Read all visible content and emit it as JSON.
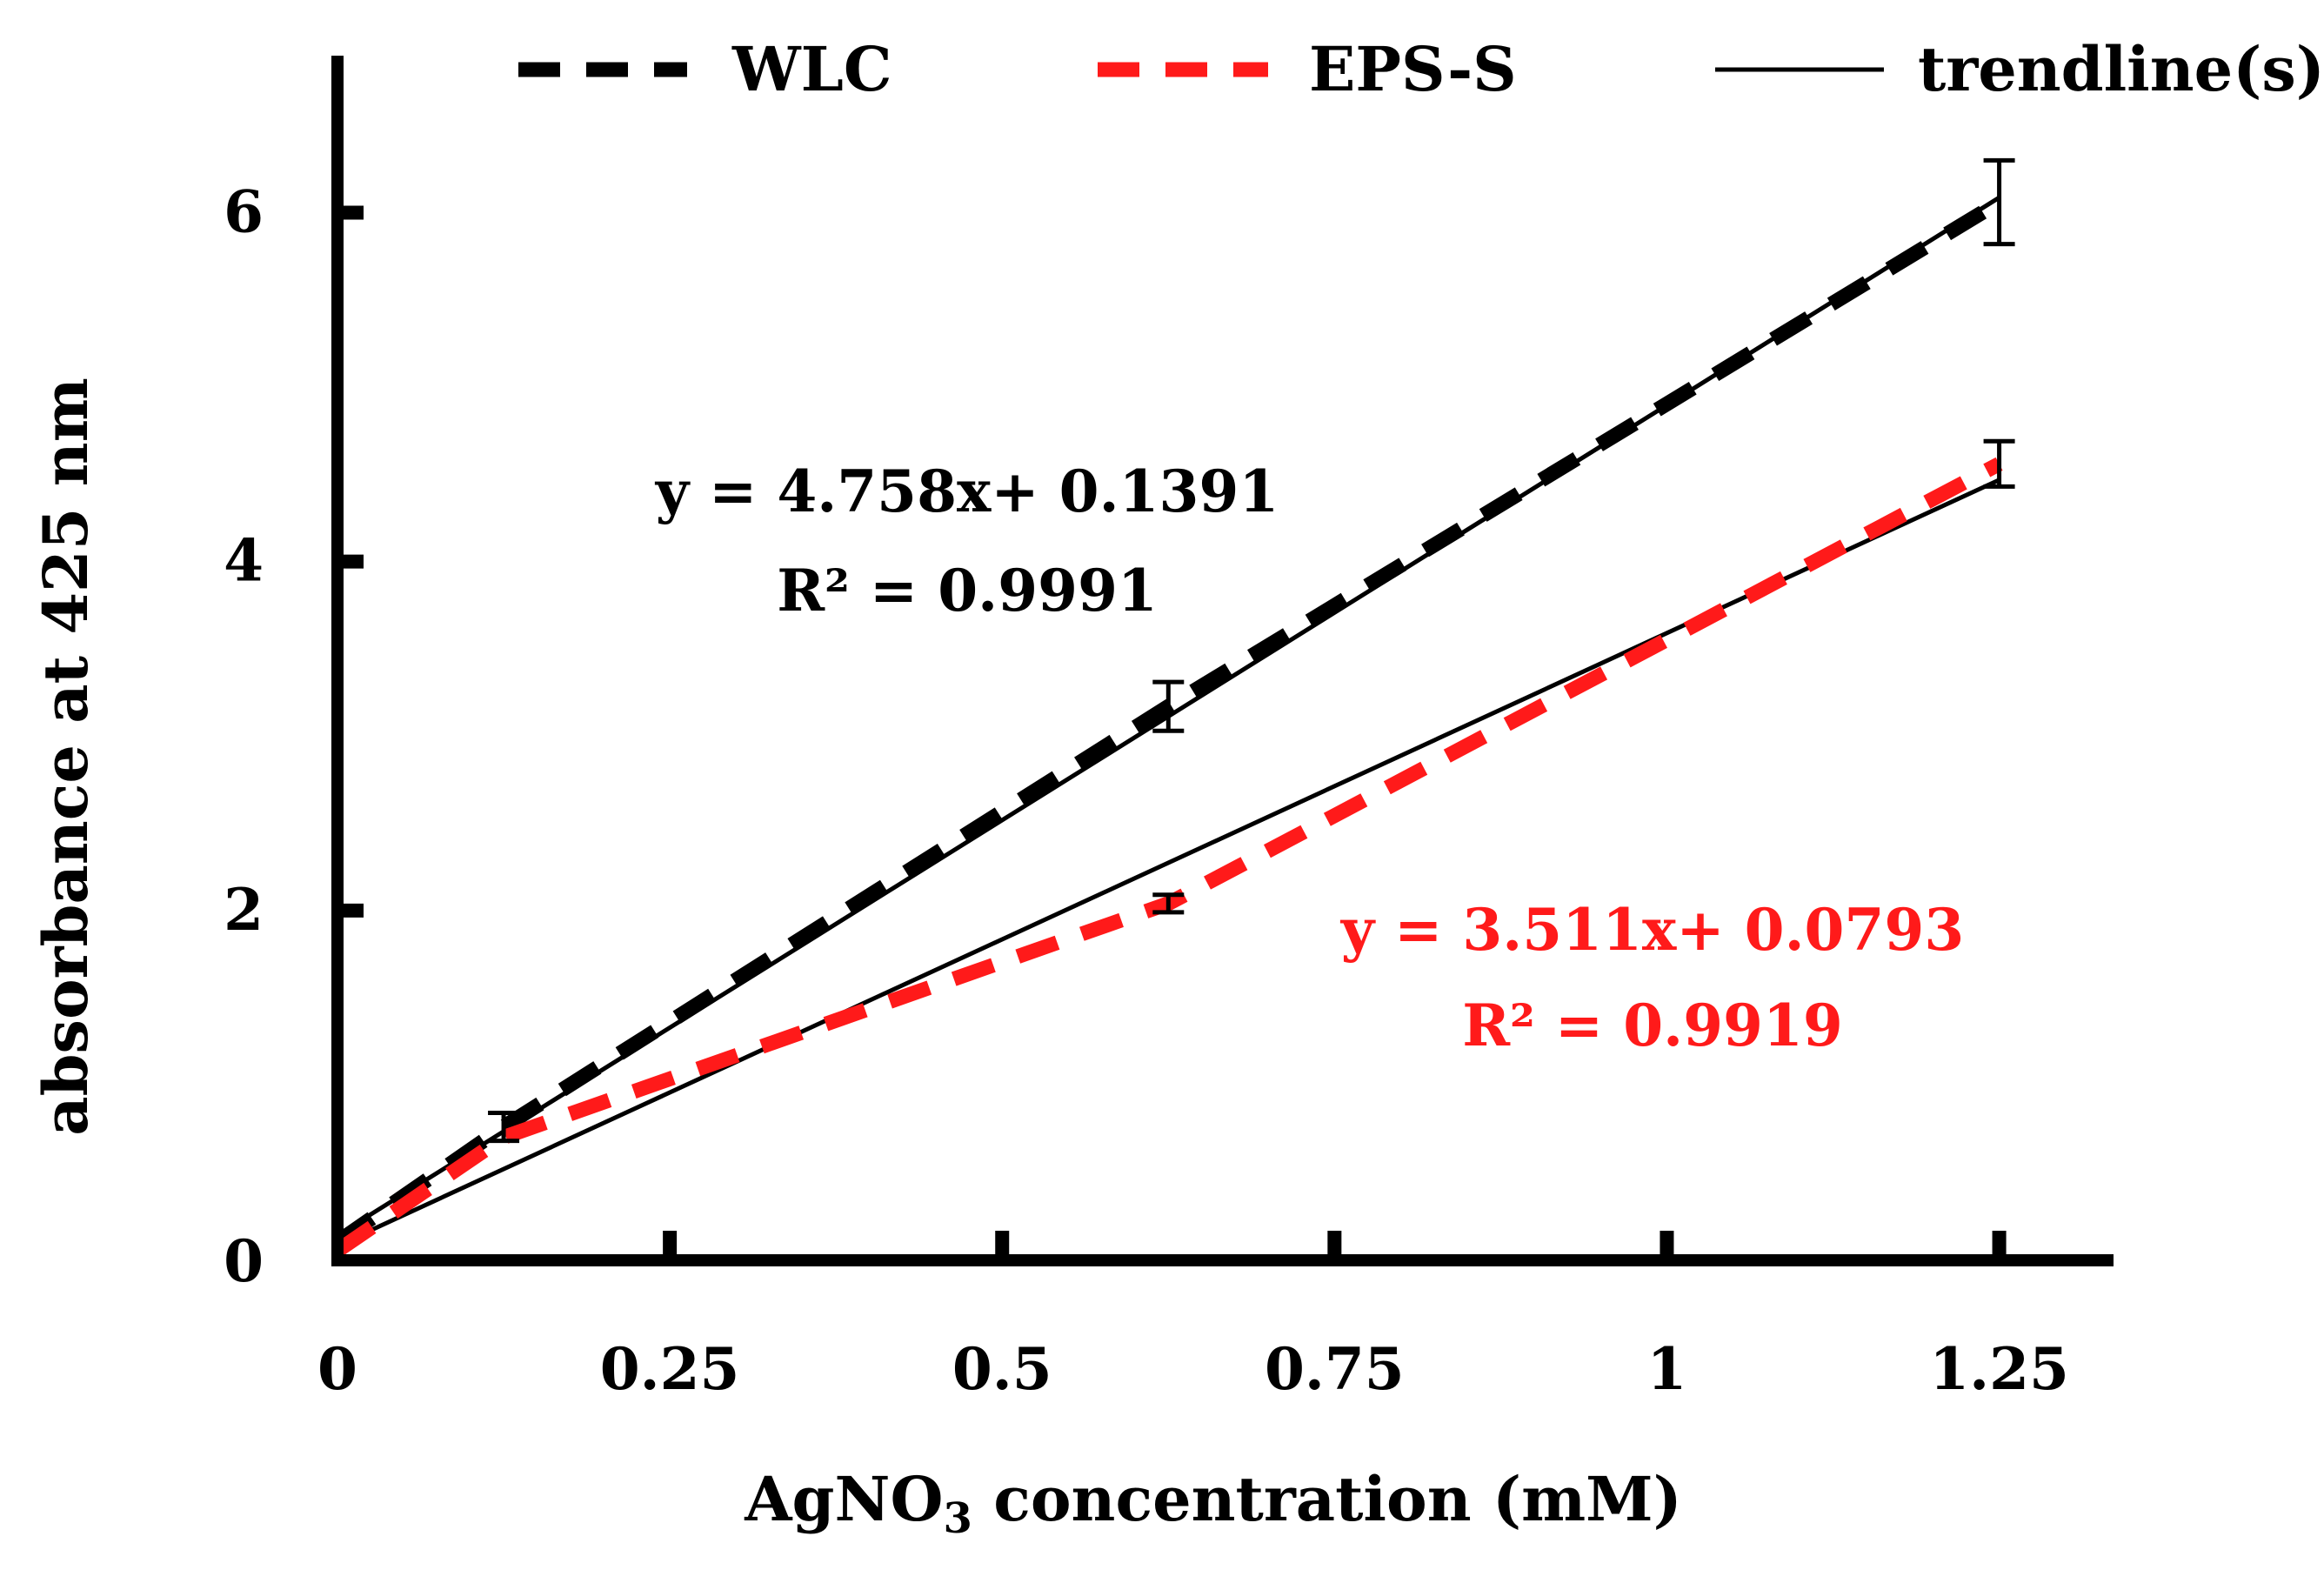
{
  "chart_data": {
    "type": "line",
    "title": "",
    "xlabel": {
      "main": "AgNO",
      "subscript": "3",
      "rest": " concentration (mM)"
    },
    "ylabel": "absorbance at 425 nm",
    "xlim": [
      0,
      1.3
    ],
    "ylim": [
      0,
      6.9
    ],
    "x_ticks": [
      0,
      0.25,
      0.5,
      0.75,
      1,
      1.25
    ],
    "x_tick_labels": [
      "0",
      "0.25",
      "0.5",
      "0.75",
      "1",
      "1.25"
    ],
    "y_ticks": [
      0,
      2,
      4,
      6
    ],
    "y_tick_labels": [
      "0",
      "2",
      "4",
      "6"
    ],
    "grid": false,
    "legend_position": "top",
    "legend": [
      {
        "name": "WLC",
        "style": "dashed",
        "color": "#000000"
      },
      {
        "name": "EPS-S",
        "style": "dashed",
        "color": "#ff1a1a"
      },
      {
        "name": "trendline(s)",
        "style": "solid",
        "color": "#000000"
      }
    ],
    "series": [
      {
        "name": "WLC",
        "color": "#000000",
        "x": [
          0,
          0.125,
          0.625,
          1.25
        ],
        "y": [
          0.1,
          0.76,
          3.17,
          6.06
        ],
        "error": [
          null,
          0.08,
          0.14,
          0.24
        ]
      },
      {
        "name": "EPS-S",
        "color": "#ff1a1a",
        "x": [
          0,
          0.125,
          0.625,
          1.25
        ],
        "y": [
          0.05,
          0.7,
          2.04,
          4.56
        ],
        "error": [
          null,
          null,
          0.05,
          0.13
        ]
      }
    ],
    "trendlines": [
      {
        "series": "WLC",
        "slope": 4.758,
        "intercept": 0.1391,
        "equation": "y = 4.758x+ 0.1391",
        "r2": "R² = 0.9991",
        "color": "#000000"
      },
      {
        "series": "EPS-S",
        "slope": 3.511,
        "intercept": 0.0793,
        "equation": "y = 3.511x+ 0.0793",
        "r2": "R² = 0.9919",
        "color": "#ff1a1a"
      }
    ]
  }
}
